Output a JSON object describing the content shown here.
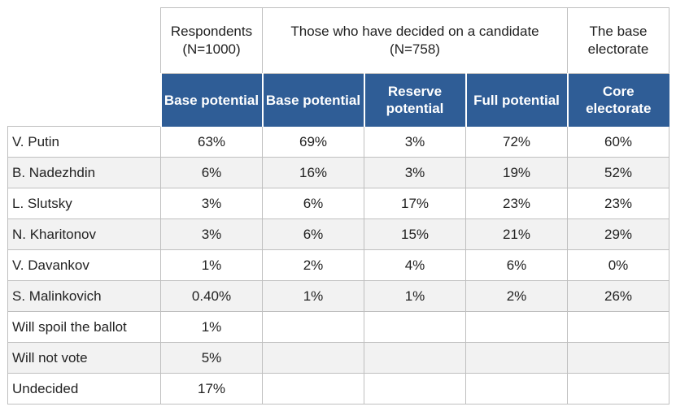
{
  "chart_data": {
    "type": "table",
    "group_headers": [
      {
        "text": "Respondents\n(N=1000)"
      },
      {
        "text": "Those who have decided on a candidate\n(N=758)"
      },
      {
        "text": "The base\nelectorate"
      }
    ],
    "columns": [
      "Base potential",
      "Base potential",
      "Reserve potential",
      "Full potential",
      "Core electorate"
    ],
    "rows": [
      {
        "label": "V. Putin",
        "cells": [
          "63%",
          "69%",
          "3%",
          "72%",
          "60%"
        ]
      },
      {
        "label": "B. Nadezhdin",
        "cells": [
          "6%",
          "16%",
          "3%",
          "19%",
          "52%"
        ]
      },
      {
        "label": "L. Slutsky",
        "cells": [
          "3%",
          "6%",
          "17%",
          "23%",
          "23%"
        ]
      },
      {
        "label": "N. Kharitonov",
        "cells": [
          "3%",
          "6%",
          "15%",
          "21%",
          "29%"
        ]
      },
      {
        "label": "V. Davankov",
        "cells": [
          "1%",
          "2%",
          "4%",
          "6%",
          "0%"
        ]
      },
      {
        "label": "S. Malinkovich",
        "cells": [
          "0.40%",
          "1%",
          "1%",
          "2%",
          "26%"
        ]
      },
      {
        "label": "Will spoil the ballot",
        "cells": [
          "1%",
          "",
          "",
          "",
          ""
        ]
      },
      {
        "label": "Will not vote",
        "cells": [
          "5%",
          "",
          "",
          "",
          ""
        ]
      },
      {
        "label": "Undecided",
        "cells": [
          "17%",
          "",
          "",
          "",
          ""
        ]
      }
    ]
  },
  "colors": {
    "header_bg": "#2f5d96",
    "row_alt": "#f2f2f2",
    "grid": "#bfbfbf"
  }
}
